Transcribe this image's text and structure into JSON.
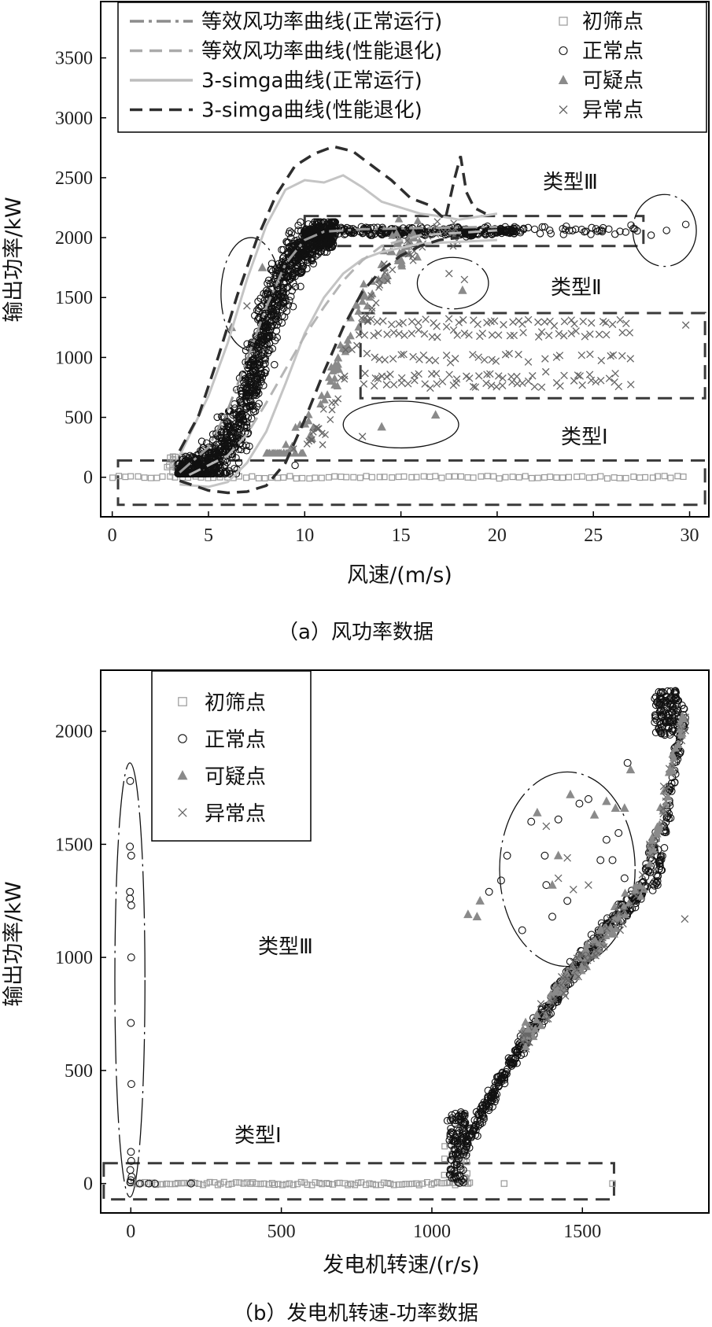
{
  "chart_data": [
    {
      "type": "scatter",
      "caption": "（a）风功率数据",
      "xlabel": "风速/(m/s)",
      "ylabel": "输出功率/kW",
      "xlim": [
        -0.6,
        31.0
      ],
      "ylim": [
        -330,
        3970
      ],
      "xticks": [
        "0",
        "5",
        "10",
        "15",
        "20",
        "25",
        "30"
      ],
      "xtick_values": [
        0,
        5,
        10,
        15,
        20,
        25,
        30
      ],
      "yticks": [
        "0",
        "500",
        "1000",
        "1500",
        "2000",
        "2500",
        "3000",
        "3500"
      ],
      "ytick_values": [
        0,
        500,
        1000,
        1500,
        2000,
        2500,
        3000,
        3500
      ],
      "legend_position": "top",
      "legend_lines": [
        {
          "label": "等效风功率曲线(正常运行)",
          "style": "dashdot",
          "color": "#8c8c8c"
        },
        {
          "label": "等效风功率曲线(性能退化)",
          "style": "dashed",
          "color": "#aaaaaa"
        },
        {
          "label": "3-simga曲线(正常运行)",
          "style": "solid",
          "color": "#bdbdbd"
        },
        {
          "label": "3-simga曲线(性能退化)",
          "style": "dashed",
          "color": "#2e2e2e"
        }
      ],
      "legend_markers": [
        {
          "label": "初筛点",
          "marker": "square"
        },
        {
          "label": "正常点",
          "marker": "circle"
        },
        {
          "label": "可疑点",
          "marker": "triangle"
        },
        {
          "label": "异常点",
          "marker": "cross"
        }
      ],
      "annotations": [
        "类型Ⅲ",
        "类型Ⅱ",
        "类型Ⅰ"
      ],
      "curves": {
        "equiv_normal": [
          [
            3.5,
            40
          ],
          [
            5,
            250
          ],
          [
            6,
            560
          ],
          [
            7,
            980
          ],
          [
            8,
            1420
          ],
          [
            9,
            1780
          ],
          [
            10,
            1980
          ],
          [
            11,
            2050
          ],
          [
            13,
            2070
          ],
          [
            16,
            2080
          ],
          [
            20,
            2090
          ]
        ],
        "equiv_degraded": [
          [
            4,
            20
          ],
          [
            6,
            180
          ],
          [
            7,
            360
          ],
          [
            8,
            620
          ],
          [
            9,
            900
          ],
          [
            10,
            1180
          ],
          [
            11,
            1420
          ],
          [
            12,
            1640
          ],
          [
            13,
            1810
          ],
          [
            14,
            1930
          ],
          [
            16,
            2020
          ],
          [
            20,
            2060
          ]
        ],
        "sigma_normal_upper": [
          [
            3.5,
            180
          ],
          [
            5,
            680
          ],
          [
            6,
            1120
          ],
          [
            7,
            1650
          ],
          [
            8,
            2100
          ],
          [
            9,
            2400
          ],
          [
            10,
            2480
          ],
          [
            11,
            2460
          ],
          [
            12,
            2520
          ],
          [
            13,
            2420
          ],
          [
            14,
            2300
          ],
          [
            15,
            2250
          ],
          [
            16,
            2200
          ],
          [
            17,
            2180
          ],
          [
            18,
            2150
          ],
          [
            20,
            2200
          ]
        ],
        "sigma_normal_lower": [
          [
            3.5,
            -60
          ],
          [
            5,
            -80
          ],
          [
            6,
            -40
          ],
          [
            7,
            120
          ],
          [
            8,
            380
          ],
          [
            9,
            780
          ],
          [
            10,
            1200
          ],
          [
            11,
            1500
          ],
          [
            12,
            1700
          ],
          [
            13,
            1820
          ],
          [
            14,
            1880
          ],
          [
            16,
            1950
          ],
          [
            20,
            1980
          ]
        ],
        "sigma_degraded_upper": [
          [
            3.5,
            220
          ],
          [
            4.5,
            520
          ],
          [
            5.5,
            1000
          ],
          [
            6.5,
            1520
          ],
          [
            7.5,
            1980
          ],
          [
            8.5,
            2350
          ],
          [
            9.5,
            2600
          ],
          [
            10.5,
            2700
          ],
          [
            11.5,
            2760
          ],
          [
            12.5,
            2720
          ],
          [
            13.5,
            2600
          ],
          [
            14.5,
            2480
          ],
          [
            15.5,
            2330
          ],
          [
            16.5,
            2270
          ],
          [
            17.3,
            2150
          ],
          [
            17.8,
            2500
          ],
          [
            18.1,
            2680
          ],
          [
            18.4,
            2380
          ],
          [
            18.8,
            2250
          ],
          [
            19.4,
            2200
          ]
        ],
        "sigma_degraded_lower": [
          [
            3.5,
            -30
          ],
          [
            5,
            -110
          ],
          [
            6,
            -130
          ],
          [
            7,
            -120
          ],
          [
            8,
            -70
          ],
          [
            9,
            120
          ],
          [
            10,
            480
          ],
          [
            11,
            880
          ],
          [
            12,
            1250
          ],
          [
            13,
            1550
          ],
          [
            14,
            1730
          ],
          [
            15,
            1850
          ],
          [
            16,
            1930
          ],
          [
            17,
            1980
          ],
          [
            18,
            2000
          ]
        ]
      },
      "regions": [
        {
          "shape": "dashed-rect",
          "x": [
            0.3,
            30.8
          ],
          "y": [
            -230,
            140
          ]
        },
        {
          "shape": "dashed-rect",
          "x": [
            12.9,
            30.8
          ],
          "y": [
            660,
            1370
          ]
        },
        {
          "shape": "dashed-rect",
          "x": [
            10.0,
            27.6
          ],
          "y": [
            1930,
            2180
          ]
        },
        {
          "shape": "dashdot-ellipse",
          "center": [
            7.2,
            1530
          ],
          "radius": [
            1.55,
            470
          ]
        },
        {
          "shape": "dashdot-ellipse",
          "center": [
            28.7,
            2060
          ],
          "radius": [
            1.65,
            300
          ]
        },
        {
          "shape": "dashdot-ellipse",
          "center": [
            17.7,
            1620
          ],
          "radius": [
            1.85,
            215
          ]
        },
        {
          "shape": "solid-ellipse",
          "center": [
            15.0,
            440
          ],
          "radius": [
            3.0,
            195
          ]
        }
      ]
    },
    {
      "type": "scatter",
      "caption": "（b）发电机转速-功率数据",
      "xlabel": "发电机转速/(r/s)",
      "ylabel": "输出功率/kW",
      "xlim": [
        -100,
        1920
      ],
      "ylim": [
        -130,
        2270
      ],
      "xticks": [
        "0",
        "500",
        "1000",
        "1500"
      ],
      "xtick_values": [
        0,
        500,
        1000,
        1500
      ],
      "yticks": [
        "0",
        "500",
        "1000",
        "1500",
        "2000"
      ],
      "ytick_values": [
        0,
        500,
        1000,
        1500,
        2000
      ],
      "legend_position": "top-left",
      "legend_markers": [
        {
          "label": "初筛点",
          "marker": "square"
        },
        {
          "label": "正常点",
          "marker": "circle"
        },
        {
          "label": "可疑点",
          "marker": "triangle"
        },
        {
          "label": "异常点",
          "marker": "cross"
        }
      ],
      "annotations": [
        "类型Ⅲ",
        "类型Ⅰ"
      ],
      "regions": [
        {
          "shape": "dashed-rect",
          "x": [
            -90,
            1605
          ],
          "y": [
            -70,
            90
          ]
        },
        {
          "shape": "dashdot-ellipse",
          "center": [
            -3,
            900
          ],
          "radius": [
            50,
            960
          ]
        },
        {
          "shape": "dashdot-ellipse",
          "center": [
            1450,
            1390
          ],
          "radius": [
            225,
            430
          ]
        }
      ]
    }
  ],
  "colors": {
    "normal": "#111111",
    "screened": "#9a9a9a",
    "suspect": "#8a8a8a",
    "abnormal": "#666666",
    "frame": "#000000",
    "region": "#3a3a3a"
  }
}
